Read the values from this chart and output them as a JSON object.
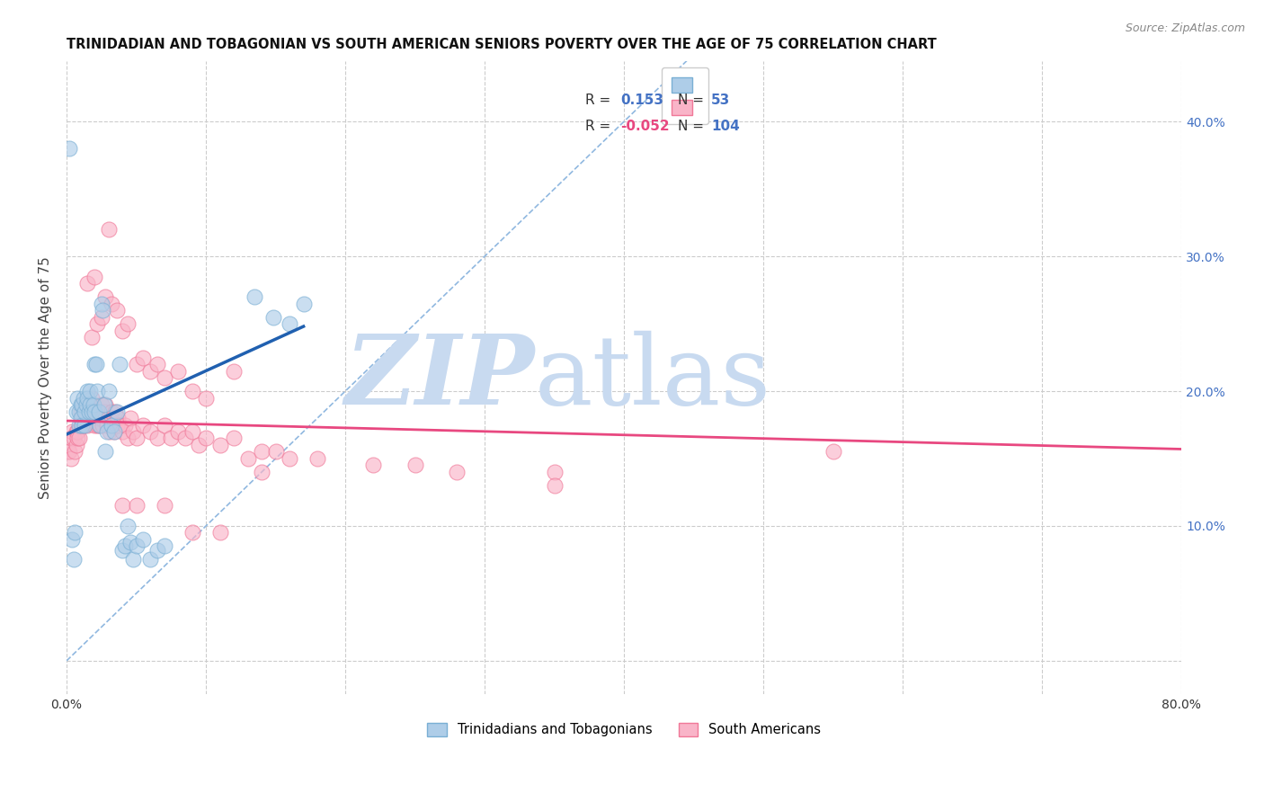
{
  "title": "TRINIDADIAN AND TOBAGONIAN VS SOUTH AMERICAN SENIORS POVERTY OVER THE AGE OF 75 CORRELATION CHART",
  "source": "Source: ZipAtlas.com",
  "xlim": [
    0.0,
    0.8
  ],
  "ylim": [
    -0.025,
    0.445
  ],
  "ylabel": "Seniors Poverty Over the Age of 75",
  "R_blue": 0.153,
  "N_blue": 53,
  "R_pink": -0.052,
  "N_pink": 104,
  "blue_face": "#aecde8",
  "blue_edge": "#7aafd4",
  "pink_face": "#f9b4c8",
  "pink_edge": "#f07898",
  "blue_line_color": "#2060b0",
  "pink_line_color": "#e84880",
  "diag_color": "#90b8e0",
  "grid_color": "#cccccc",
  "watermark_color": "#c8daf0",
  "watermark_zip": "ZIP",
  "watermark_atlas": "atlas",
  "legend_label_blue": "Trinidadians and Tobagonians",
  "legend_label_pink": "South Americans",
  "blue_scatter_x": [
    0.002,
    0.004,
    0.005,
    0.006,
    0.007,
    0.008,
    0.009,
    0.009,
    0.01,
    0.01,
    0.011,
    0.011,
    0.012,
    0.013,
    0.013,
    0.014,
    0.015,
    0.015,
    0.016,
    0.017,
    0.017,
    0.018,
    0.019,
    0.02,
    0.02,
    0.021,
    0.022,
    0.023,
    0.024,
    0.025,
    0.026,
    0.027,
    0.028,
    0.029,
    0.03,
    0.032,
    0.034,
    0.036,
    0.038,
    0.04,
    0.042,
    0.044,
    0.046,
    0.048,
    0.05,
    0.055,
    0.06,
    0.065,
    0.07,
    0.135,
    0.148,
    0.16,
    0.17
  ],
  "blue_scatter_y": [
    0.38,
    0.09,
    0.075,
    0.095,
    0.185,
    0.195,
    0.175,
    0.185,
    0.19,
    0.18,
    0.175,
    0.19,
    0.195,
    0.175,
    0.185,
    0.19,
    0.2,
    0.195,
    0.185,
    0.19,
    0.2,
    0.185,
    0.19,
    0.185,
    0.22,
    0.22,
    0.2,
    0.185,
    0.175,
    0.265,
    0.26,
    0.19,
    0.155,
    0.17,
    0.2,
    0.175,
    0.17,
    0.185,
    0.22,
    0.082,
    0.085,
    0.1,
    0.088,
    0.075,
    0.085,
    0.09,
    0.075,
    0.082,
    0.085,
    0.27,
    0.255,
    0.25,
    0.265
  ],
  "pink_scatter_x": [
    0.001,
    0.002,
    0.003,
    0.003,
    0.004,
    0.005,
    0.006,
    0.007,
    0.007,
    0.008,
    0.008,
    0.009,
    0.01,
    0.01,
    0.011,
    0.012,
    0.012,
    0.013,
    0.013,
    0.014,
    0.015,
    0.015,
    0.016,
    0.016,
    0.017,
    0.018,
    0.018,
    0.019,
    0.02,
    0.021,
    0.022,
    0.022,
    0.023,
    0.024,
    0.025,
    0.025,
    0.026,
    0.027,
    0.028,
    0.029,
    0.03,
    0.031,
    0.032,
    0.033,
    0.034,
    0.035,
    0.036,
    0.037,
    0.038,
    0.04,
    0.042,
    0.044,
    0.046,
    0.048,
    0.05,
    0.055,
    0.06,
    0.065,
    0.07,
    0.075,
    0.08,
    0.085,
    0.09,
    0.095,
    0.1,
    0.11,
    0.12,
    0.13,
    0.14,
    0.15,
    0.16,
    0.18,
    0.22,
    0.25,
    0.28,
    0.35,
    0.55,
    0.018,
    0.022,
    0.025,
    0.028,
    0.032,
    0.036,
    0.04,
    0.044,
    0.05,
    0.055,
    0.06,
    0.065,
    0.07,
    0.08,
    0.09,
    0.1,
    0.12,
    0.015,
    0.02,
    0.03,
    0.04,
    0.05,
    0.07,
    0.09,
    0.11,
    0.14,
    0.35
  ],
  "pink_scatter_y": [
    0.155,
    0.155,
    0.165,
    0.15,
    0.17,
    0.165,
    0.155,
    0.16,
    0.17,
    0.17,
    0.165,
    0.165,
    0.185,
    0.175,
    0.18,
    0.185,
    0.175,
    0.19,
    0.185,
    0.18,
    0.185,
    0.175,
    0.19,
    0.185,
    0.185,
    0.185,
    0.195,
    0.18,
    0.175,
    0.18,
    0.185,
    0.175,
    0.175,
    0.18,
    0.18,
    0.19,
    0.175,
    0.185,
    0.19,
    0.175,
    0.18,
    0.17,
    0.185,
    0.175,
    0.17,
    0.185,
    0.175,
    0.18,
    0.175,
    0.17,
    0.175,
    0.165,
    0.18,
    0.17,
    0.165,
    0.175,
    0.17,
    0.165,
    0.175,
    0.165,
    0.17,
    0.165,
    0.17,
    0.16,
    0.165,
    0.16,
    0.165,
    0.15,
    0.155,
    0.155,
    0.15,
    0.15,
    0.145,
    0.145,
    0.14,
    0.14,
    0.155,
    0.24,
    0.25,
    0.255,
    0.27,
    0.265,
    0.26,
    0.245,
    0.25,
    0.22,
    0.225,
    0.215,
    0.22,
    0.21,
    0.215,
    0.2,
    0.195,
    0.215,
    0.28,
    0.285,
    0.32,
    0.115,
    0.115,
    0.115,
    0.095,
    0.095,
    0.14,
    0.13
  ],
  "blue_trend_x": [
    0.0,
    0.17
  ],
  "pink_trend_x": [
    0.0,
    0.8
  ],
  "blue_trend_y_start": 0.168,
  "blue_trend_y_end": 0.248,
  "pink_trend_y_start": 0.178,
  "pink_trend_y_end": 0.157
}
